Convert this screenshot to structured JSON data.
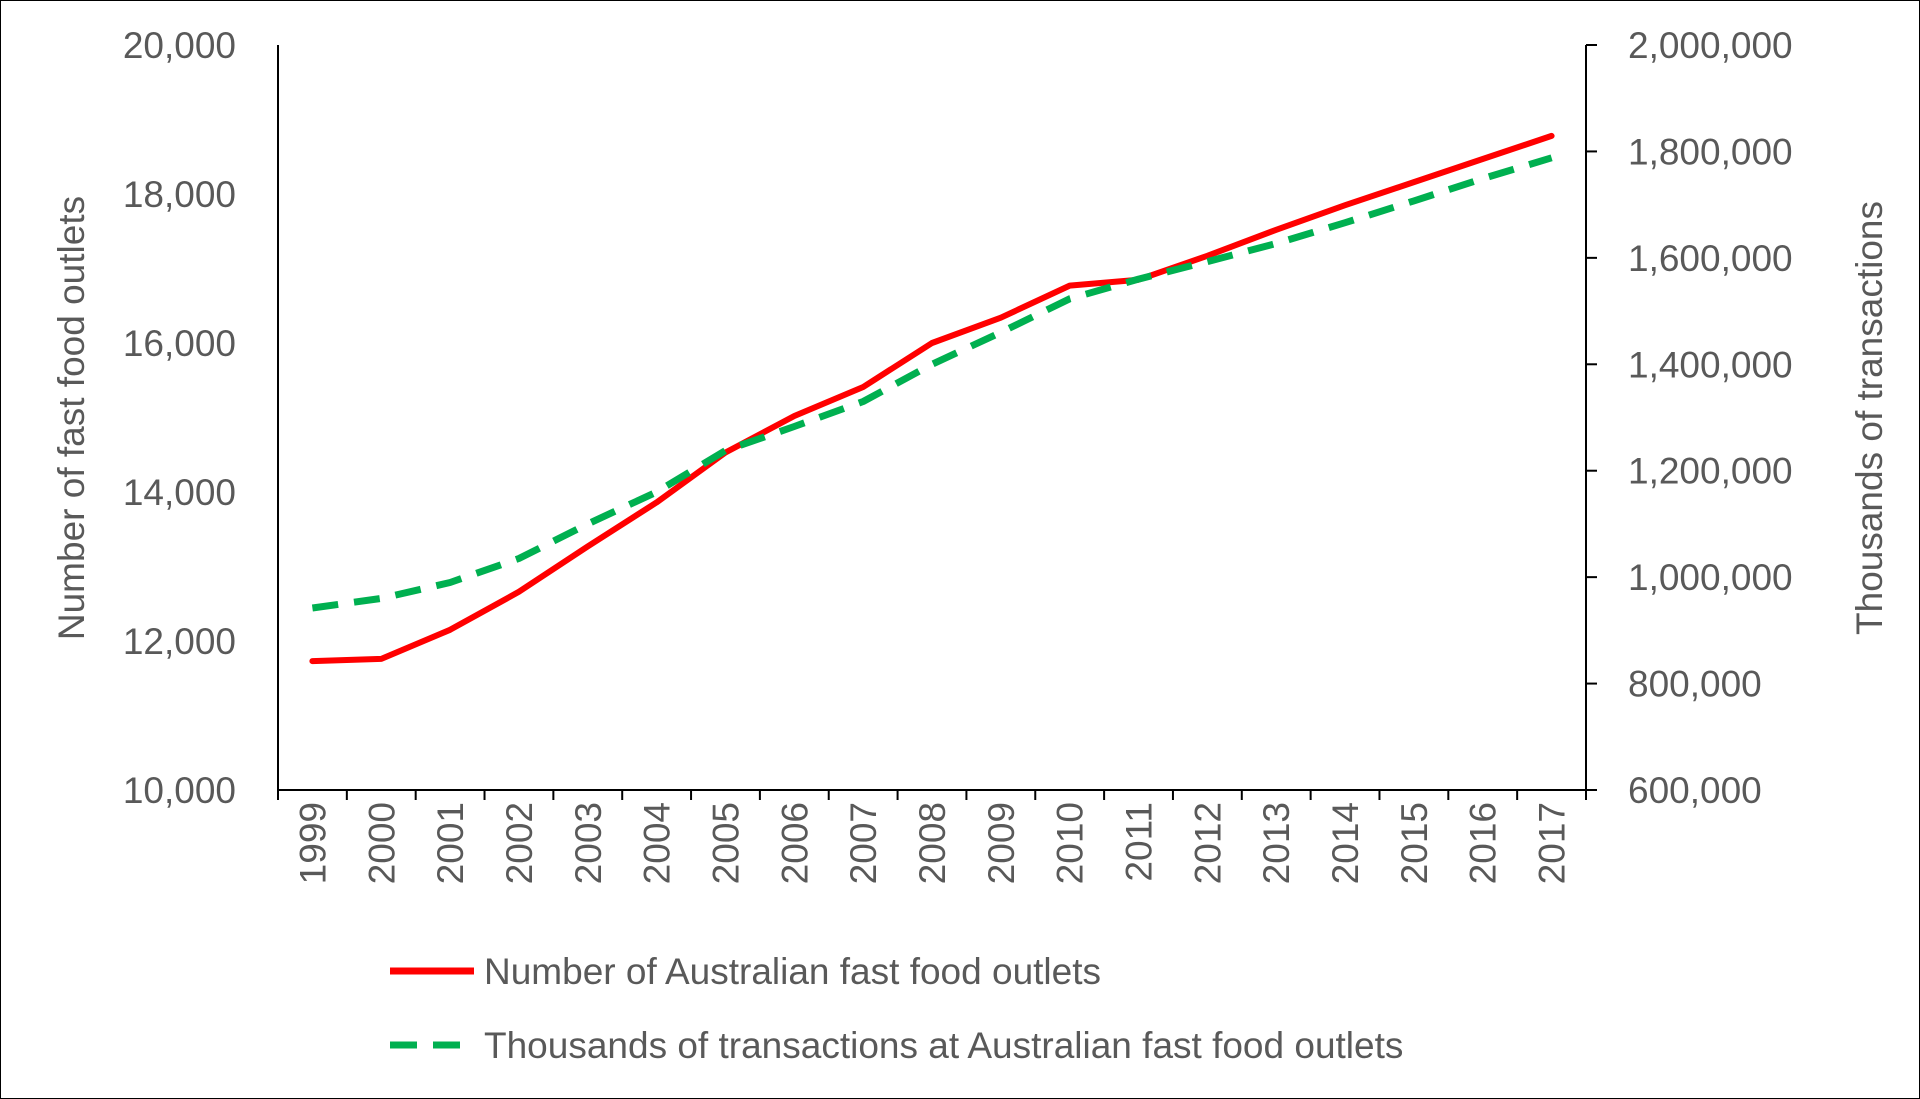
{
  "chart_data": {
    "type": "line",
    "x": [
      "1999",
      "2000",
      "2001",
      "2002",
      "2003",
      "2004",
      "2005",
      "2006",
      "2007",
      "2008",
      "2009",
      "2010",
      "2011",
      "2012",
      "2013",
      "2014",
      "2015",
      "2016",
      "2017"
    ],
    "series": [
      {
        "name": "Number of Australian fast food outlets",
        "axis": "left",
        "values": [
          11730,
          11760,
          12150,
          12660,
          13270,
          13860,
          14530,
          15020,
          15410,
          16000,
          16340,
          16770,
          16850,
          17170,
          17520,
          17850,
          18160,
          18470,
          18780
        ],
        "color": "#ff0000",
        "dash": "solid"
      },
      {
        "name": "Thousands of transactions at Australian fast food outlets",
        "axis": "right",
        "values": [
          942000,
          960000,
          990000,
          1035000,
          1100000,
          1160000,
          1238000,
          1283000,
          1330000,
          1400000,
          1460000,
          1523000,
          1560000,
          1593000,
          1627000,
          1666000,
          1707000,
          1749000,
          1788000
        ],
        "color": "#00b050",
        "dash": "dashed"
      }
    ],
    "ylabel_left": "Number of fast food outlets",
    "ylabel_right": "Thousands of transactions",
    "ylim_left": [
      10000,
      20000
    ],
    "ylim_right": [
      600000,
      2000000
    ],
    "yticks_left": [
      "10,000",
      "12,000",
      "14,000",
      "16,000",
      "18,000",
      "20,000"
    ],
    "yticks_right": [
      "600,000",
      "800,000",
      "1,000,000",
      "1,200,000",
      "1,400,000",
      "1,600,000",
      "1,800,000",
      "2,000,000"
    ],
    "ytick_values_left": [
      10000,
      12000,
      14000,
      16000,
      18000,
      20000
    ],
    "ytick_values_right": [
      600000,
      800000,
      1000000,
      1200000,
      1400000,
      1600000,
      1800000,
      2000000
    ],
    "grid": false,
    "legend_position": "bottom"
  }
}
